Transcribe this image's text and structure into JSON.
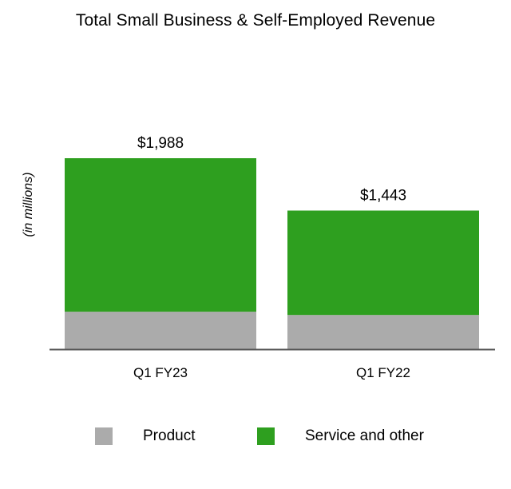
{
  "chart_data": {
    "type": "bar",
    "stacked": true,
    "title": "Total Small Business & Self-Employed Revenue",
    "xlabel": "",
    "ylabel": "(in millions)",
    "categories": [
      "Q1 FY23",
      "Q1 FY22"
    ],
    "series": [
      {
        "name": "Product",
        "color": "#ababab",
        "values": [
          390,
          356
        ]
      },
      {
        "name": "Service and other",
        "color": "#2e9f1f",
        "values": [
          1598,
          1087
        ]
      }
    ],
    "totals": [
      1988,
      1443
    ],
    "total_labels": [
      "$1,988",
      "$1,443"
    ],
    "ylim": [
      0,
      2000
    ],
    "grid": false,
    "legend_position": "bottom"
  },
  "legend": {
    "items": [
      {
        "label": "Product",
        "color": "#ababab"
      },
      {
        "label": "Service and other",
        "color": "#2e9f1f"
      }
    ]
  },
  "colors": {
    "axis": "#555555",
    "product": "#ababab",
    "service": "#2e9f1f"
  }
}
